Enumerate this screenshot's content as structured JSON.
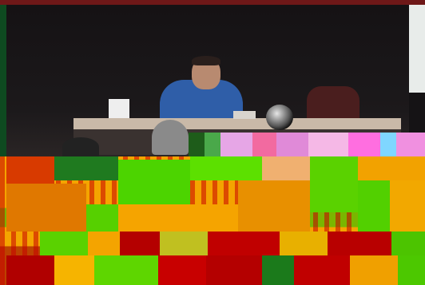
{
  "image": {
    "description_tags": [
      "lecture",
      "speaker-at-table",
      "corrupted-lower-half"
    ],
    "colors": {
      "backdrop": "#151315",
      "top_border": "#6e1818",
      "shirt": "#2f5ea8",
      "table": "#c9b9a8",
      "glitch_orange": "#f4a400",
      "glitch_green": "#4cd400",
      "glitch_red": "#b40000",
      "glitch_pink": "#f5b8e6"
    }
  }
}
